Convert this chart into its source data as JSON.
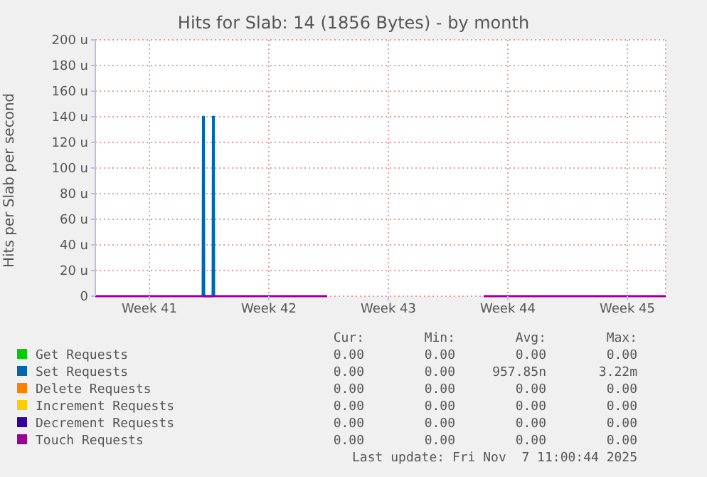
{
  "chart_data": {
    "type": "line",
    "title": "Hits for Slab: 14 (1856 Bytes) - by month",
    "ylabel": "Hits per Slab per second",
    "xlim": [
      "2025-10-05T01:00",
      "2025-11-07T11:00"
    ],
    "xticks": [
      {
        "value": "2025-10-08T05:00",
        "label": "Week 41"
      },
      {
        "value": "2025-10-15T05:00",
        "label": "Week 42"
      },
      {
        "value": "2025-10-22T05:00",
        "label": "Week 43"
      },
      {
        "value": "2025-10-29T05:00",
        "label": "Week 44"
      },
      {
        "value": "2025-11-05T05:00",
        "label": "Week 45"
      }
    ],
    "ylim": [
      0,
      200
    ],
    "yticks": [
      {
        "value": 0,
        "label": "0"
      },
      {
        "value": 20,
        "label": "20 u"
      },
      {
        "value": 40,
        "label": "40 u"
      },
      {
        "value": 60,
        "label": "60 u"
      },
      {
        "value": 80,
        "label": "80 u"
      },
      {
        "value": 100,
        "label": "100 u"
      },
      {
        "value": 120,
        "label": "120 u"
      },
      {
        "value": 140,
        "label": "140 u"
      },
      {
        "value": 160,
        "label": "160 u"
      },
      {
        "value": 180,
        "label": "180 u"
      },
      {
        "value": 200,
        "label": "200 u"
      }
    ],
    "grid": true,
    "legend": "bottom",
    "marker": "none",
    "line_style": "solid",
    "series": [
      {
        "name": "Get Requests",
        "color": "#00cc00"
      },
      {
        "name": "Set Requests",
        "color": "#0066b3",
        "x": [
          "2025-10-11T08:00",
          "2025-10-11T08:30",
          "2025-10-11T09:30",
          "2025-10-11T10:00",
          "2025-10-11T22:00",
          "2025-10-11T22:30",
          "2025-10-11T23:30",
          "2025-10-12T00:00"
        ],
        "values": [
          0,
          140,
          140,
          0,
          0,
          140,
          140,
          0
        ]
      },
      {
        "name": "Delete Requests",
        "color": "#ff8000"
      },
      {
        "name": "Increment Requests",
        "color": "#ffcc00"
      },
      {
        "name": "Decrement Requests",
        "color": "#330099"
      },
      {
        "name": "Touch Requests",
        "color": "#990099",
        "x": [
          "2025-10-05T01:00",
          "2025-10-18T15:00",
          "2025-10-23T00:00",
          "2025-10-27T19:00",
          "2025-11-07T11:00"
        ],
        "values": [
          0,
          0,
          null,
          0,
          0
        ]
      }
    ],
    "annotations": [
      "Cur:",
      "Min:",
      "Avg:",
      "Max:",
      "0.00",
      "0.00",
      "0.00",
      "0.00",
      "0.00",
      "0.00",
      "957.85n",
      "3.22m",
      "0.00",
      "0.00",
      "0.00",
      "0.00",
      "0.00",
      "0.00",
      "0.00",
      "0.00",
      "0.00",
      "0.00",
      "0.00",
      "0.00",
      "0.00",
      "0.00",
      "0.00",
      "0.00",
      "Last update: Fri Nov  7 11:00:44 2025"
    ]
  }
}
